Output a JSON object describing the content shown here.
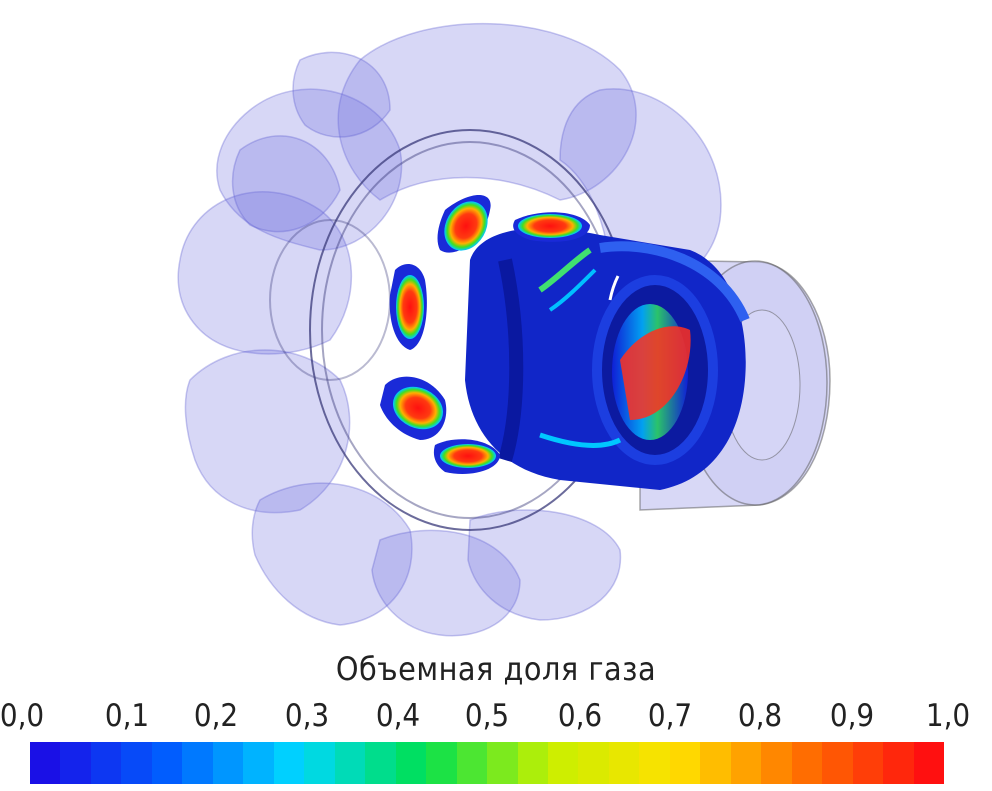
{
  "legend": {
    "title": "Объемная доля газа",
    "ticks": [
      "0,0",
      "0,1",
      "0,2",
      "0,3",
      "0,4",
      "0,5",
      "0,6",
      "0,7",
      "0,8",
      "0,9",
      "1,0"
    ],
    "range": [
      0.0,
      1.0
    ],
    "colormap": "rainbow (blue → cyan → green → yellow → red)",
    "colormap_stops": [
      "#1a10e6",
      "#0060ff",
      "#00d8ff",
      "#00e050",
      "#c8f000",
      "#ffe000",
      "#ff7000",
      "#ff1010"
    ]
  },
  "figure": {
    "description_colors": {
      "casing": "#8c8ce8",
      "background": "#ffffff"
    }
  }
}
